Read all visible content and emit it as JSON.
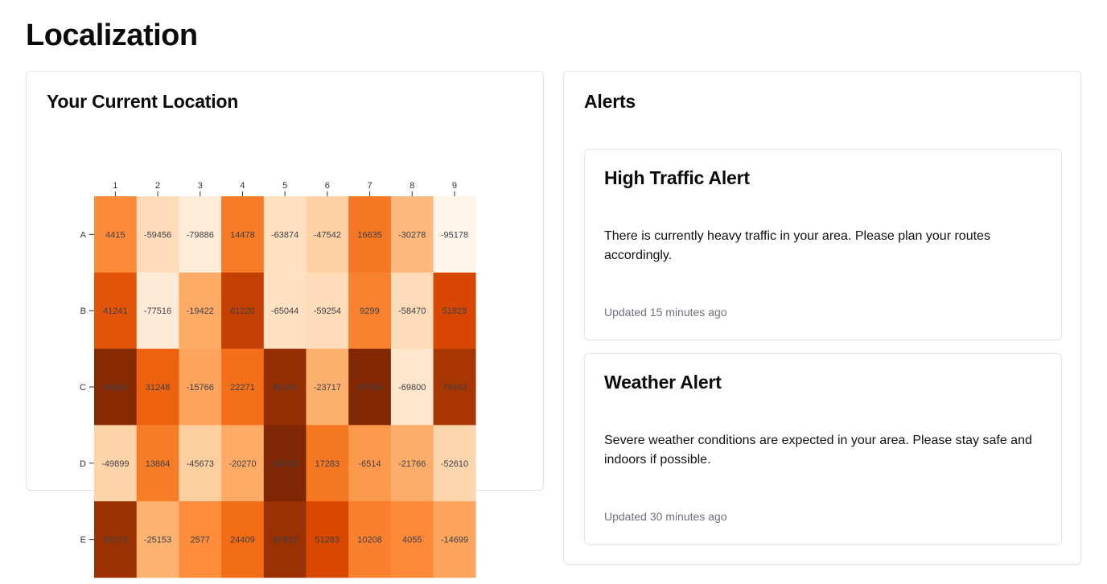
{
  "page": {
    "title": "Localization"
  },
  "location_card": {
    "title": "Your Current Location"
  },
  "alerts_card": {
    "title": "Alerts",
    "alerts": [
      {
        "title": "High Traffic Alert",
        "body": "There is currently heavy traffic in your area. Please plan your routes accordingly.",
        "time": "Updated 15 minutes ago"
      },
      {
        "title": "Weather Alert",
        "body": "Severe weather conditions are expected in your area. Please stay safe and indoors if possible.",
        "time": "Updated 30 minutes ago"
      }
    ]
  },
  "chart_data": {
    "type": "heatmap",
    "columns": [
      "1",
      "2",
      "3",
      "4",
      "5",
      "6",
      "7",
      "8",
      "9"
    ],
    "rows": [
      "A",
      "B",
      "C",
      "D",
      "E"
    ],
    "values": [
      [
        4415,
        -59456,
        -79886,
        14478,
        -63874,
        -47542,
        16635,
        -30278,
        -95178
      ],
      [
        41241,
        -77516,
        -19422,
        61220,
        -65044,
        -59254,
        9299,
        -58470,
        51828
      ],
      [
        94426,
        31248,
        -15766,
        22271,
        86246,
        -23717,
        97595,
        -69800,
        74453
      ],
      [
        -49899,
        13864,
        -45673,
        -20270,
        99430,
        17283,
        -6514,
        -21766,
        -52610
      ],
      [
        81123,
        -25153,
        2577,
        24409,
        82923,
        51283,
        10208,
        4055,
        -14699
      ]
    ],
    "color_scheme": "Oranges",
    "colors": {
      "low": "#fff5eb",
      "high": "#7f2704"
    }
  }
}
